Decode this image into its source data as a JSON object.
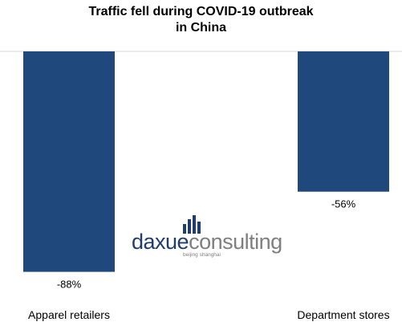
{
  "chart_data": {
    "type": "bar",
    "title": "Traffic fell during COVID-19 outbreak\nin China",
    "categories": [
      "Apparel retailers",
      "Department stores"
    ],
    "values": [
      -88,
      -56
    ],
    "data_labels": [
      "-88%",
      "-56%"
    ],
    "bar_color": "#1F497D",
    "ylim": [
      -100,
      0
    ],
    "grid": false,
    "legend": "none"
  },
  "watermark": {
    "logo_text_part1": "daxue",
    "logo_text_part2": "consulting",
    "logo_subtext": "beijing shanghai",
    "color_dark": "#1F3E6E",
    "color_gray": "#7F7F7F"
  }
}
